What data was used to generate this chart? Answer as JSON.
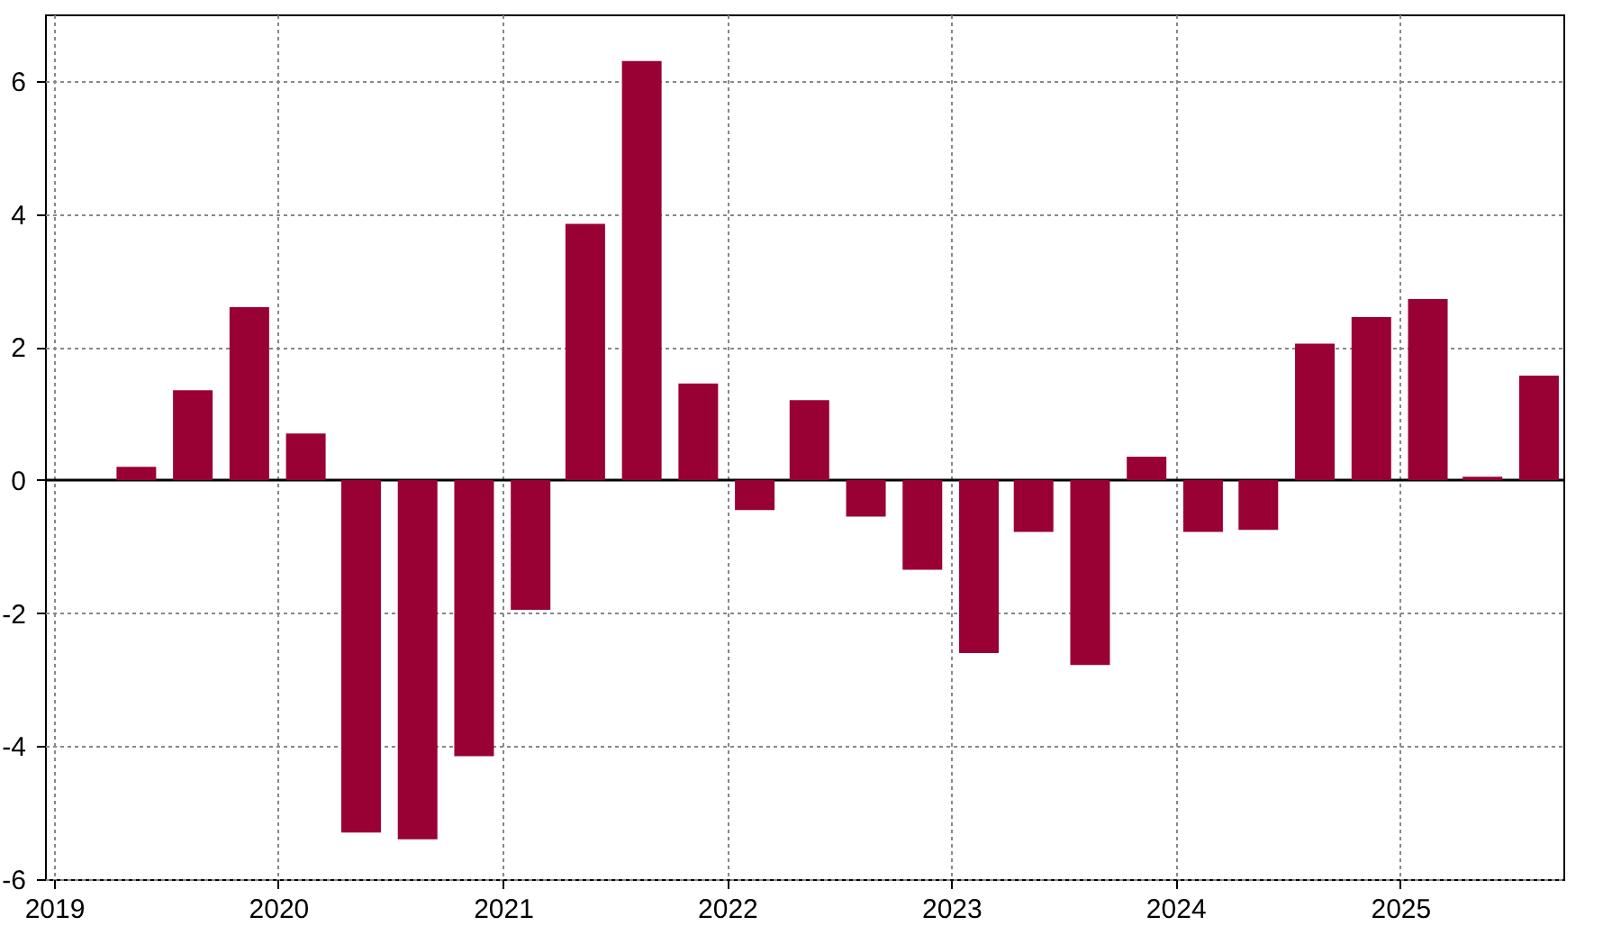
{
  "chart_data": {
    "type": "bar",
    "x": [
      "2019-05-15",
      "2019-08-15",
      "2019-11-15",
      "2020-02-15",
      "2020-05-15",
      "2020-08-15",
      "2020-11-15",
      "2021-02-15",
      "2021-05-15",
      "2021-08-15",
      "2021-11-15",
      "2022-02-15",
      "2022-05-15",
      "2022-08-15",
      "2022-11-15",
      "2023-02-15",
      "2023-05-15",
      "2023-08-15",
      "2023-11-15",
      "2024-02-15",
      "2024-05-15",
      "2024-08-15",
      "2024-11-15",
      "2025-02-15",
      "2025-05-15",
      "2025-08-15"
    ],
    "values": [
      0.2,
      1.35,
      2.6,
      0.7,
      -5.3,
      -5.4,
      -4.15,
      -1.95,
      3.85,
      6.3,
      1.45,
      -0.45,
      1.2,
      -0.55,
      -1.35,
      -2.6,
      -0.78,
      -2.78,
      0.35,
      -0.78,
      -0.75,
      2.05,
      2.45,
      2.72,
      0.05,
      1.57
    ],
    "color": "#990033",
    "xlim": [
      "2019-01-01",
      "2025-09-09"
    ],
    "xticks": [
      "2019",
      "2020",
      "2021",
      "2022",
      "2023",
      "2024",
      "2025"
    ],
    "ylim": [
      -6,
      7
    ],
    "yticks": [
      -6,
      -4,
      -2,
      0,
      2,
      4,
      6
    ],
    "grid": true,
    "ref_lines": [
      {
        "axis": "y",
        "value": 0,
        "color": "#000000"
      }
    ]
  }
}
